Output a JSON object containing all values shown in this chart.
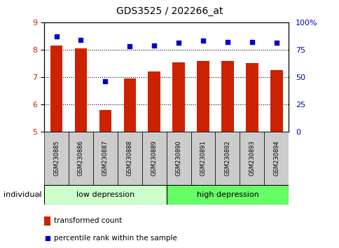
{
  "title": "GDS3525 / 202266_at",
  "samples": [
    "GSM230885",
    "GSM230886",
    "GSM230887",
    "GSM230888",
    "GSM230889",
    "GSM230890",
    "GSM230891",
    "GSM230892",
    "GSM230893",
    "GSM230894"
  ],
  "bar_values": [
    8.15,
    8.05,
    5.78,
    6.95,
    7.2,
    7.52,
    7.58,
    7.58,
    7.5,
    7.25
  ],
  "dot_values": [
    87,
    84,
    46,
    78,
    79,
    81,
    83,
    82,
    82,
    81
  ],
  "bar_color": "#cc2200",
  "dot_color": "#0000cc",
  "ylim_left": [
    5,
    9
  ],
  "ylim_right": [
    0,
    100
  ],
  "yticks_left": [
    5,
    6,
    7,
    8,
    9
  ],
  "yticks_right": [
    0,
    25,
    50,
    75,
    100
  ],
  "yticklabels_right": [
    "0",
    "25",
    "50",
    "75",
    "100%"
  ],
  "group1_label": "low depression",
  "group2_label": "high depression",
  "group1_count": 5,
  "group2_count": 5,
  "group1_color": "#ccffcc",
  "group2_color": "#66ff66",
  "individual_label": "individual",
  "legend_bar_label": "transformed count",
  "legend_dot_label": "percentile rank within the sample",
  "tick_label_color_left": "#cc2200",
  "tick_label_color_right": "#0000cc",
  "sample_box_color": "#cccccc",
  "bar_width": 0.5
}
